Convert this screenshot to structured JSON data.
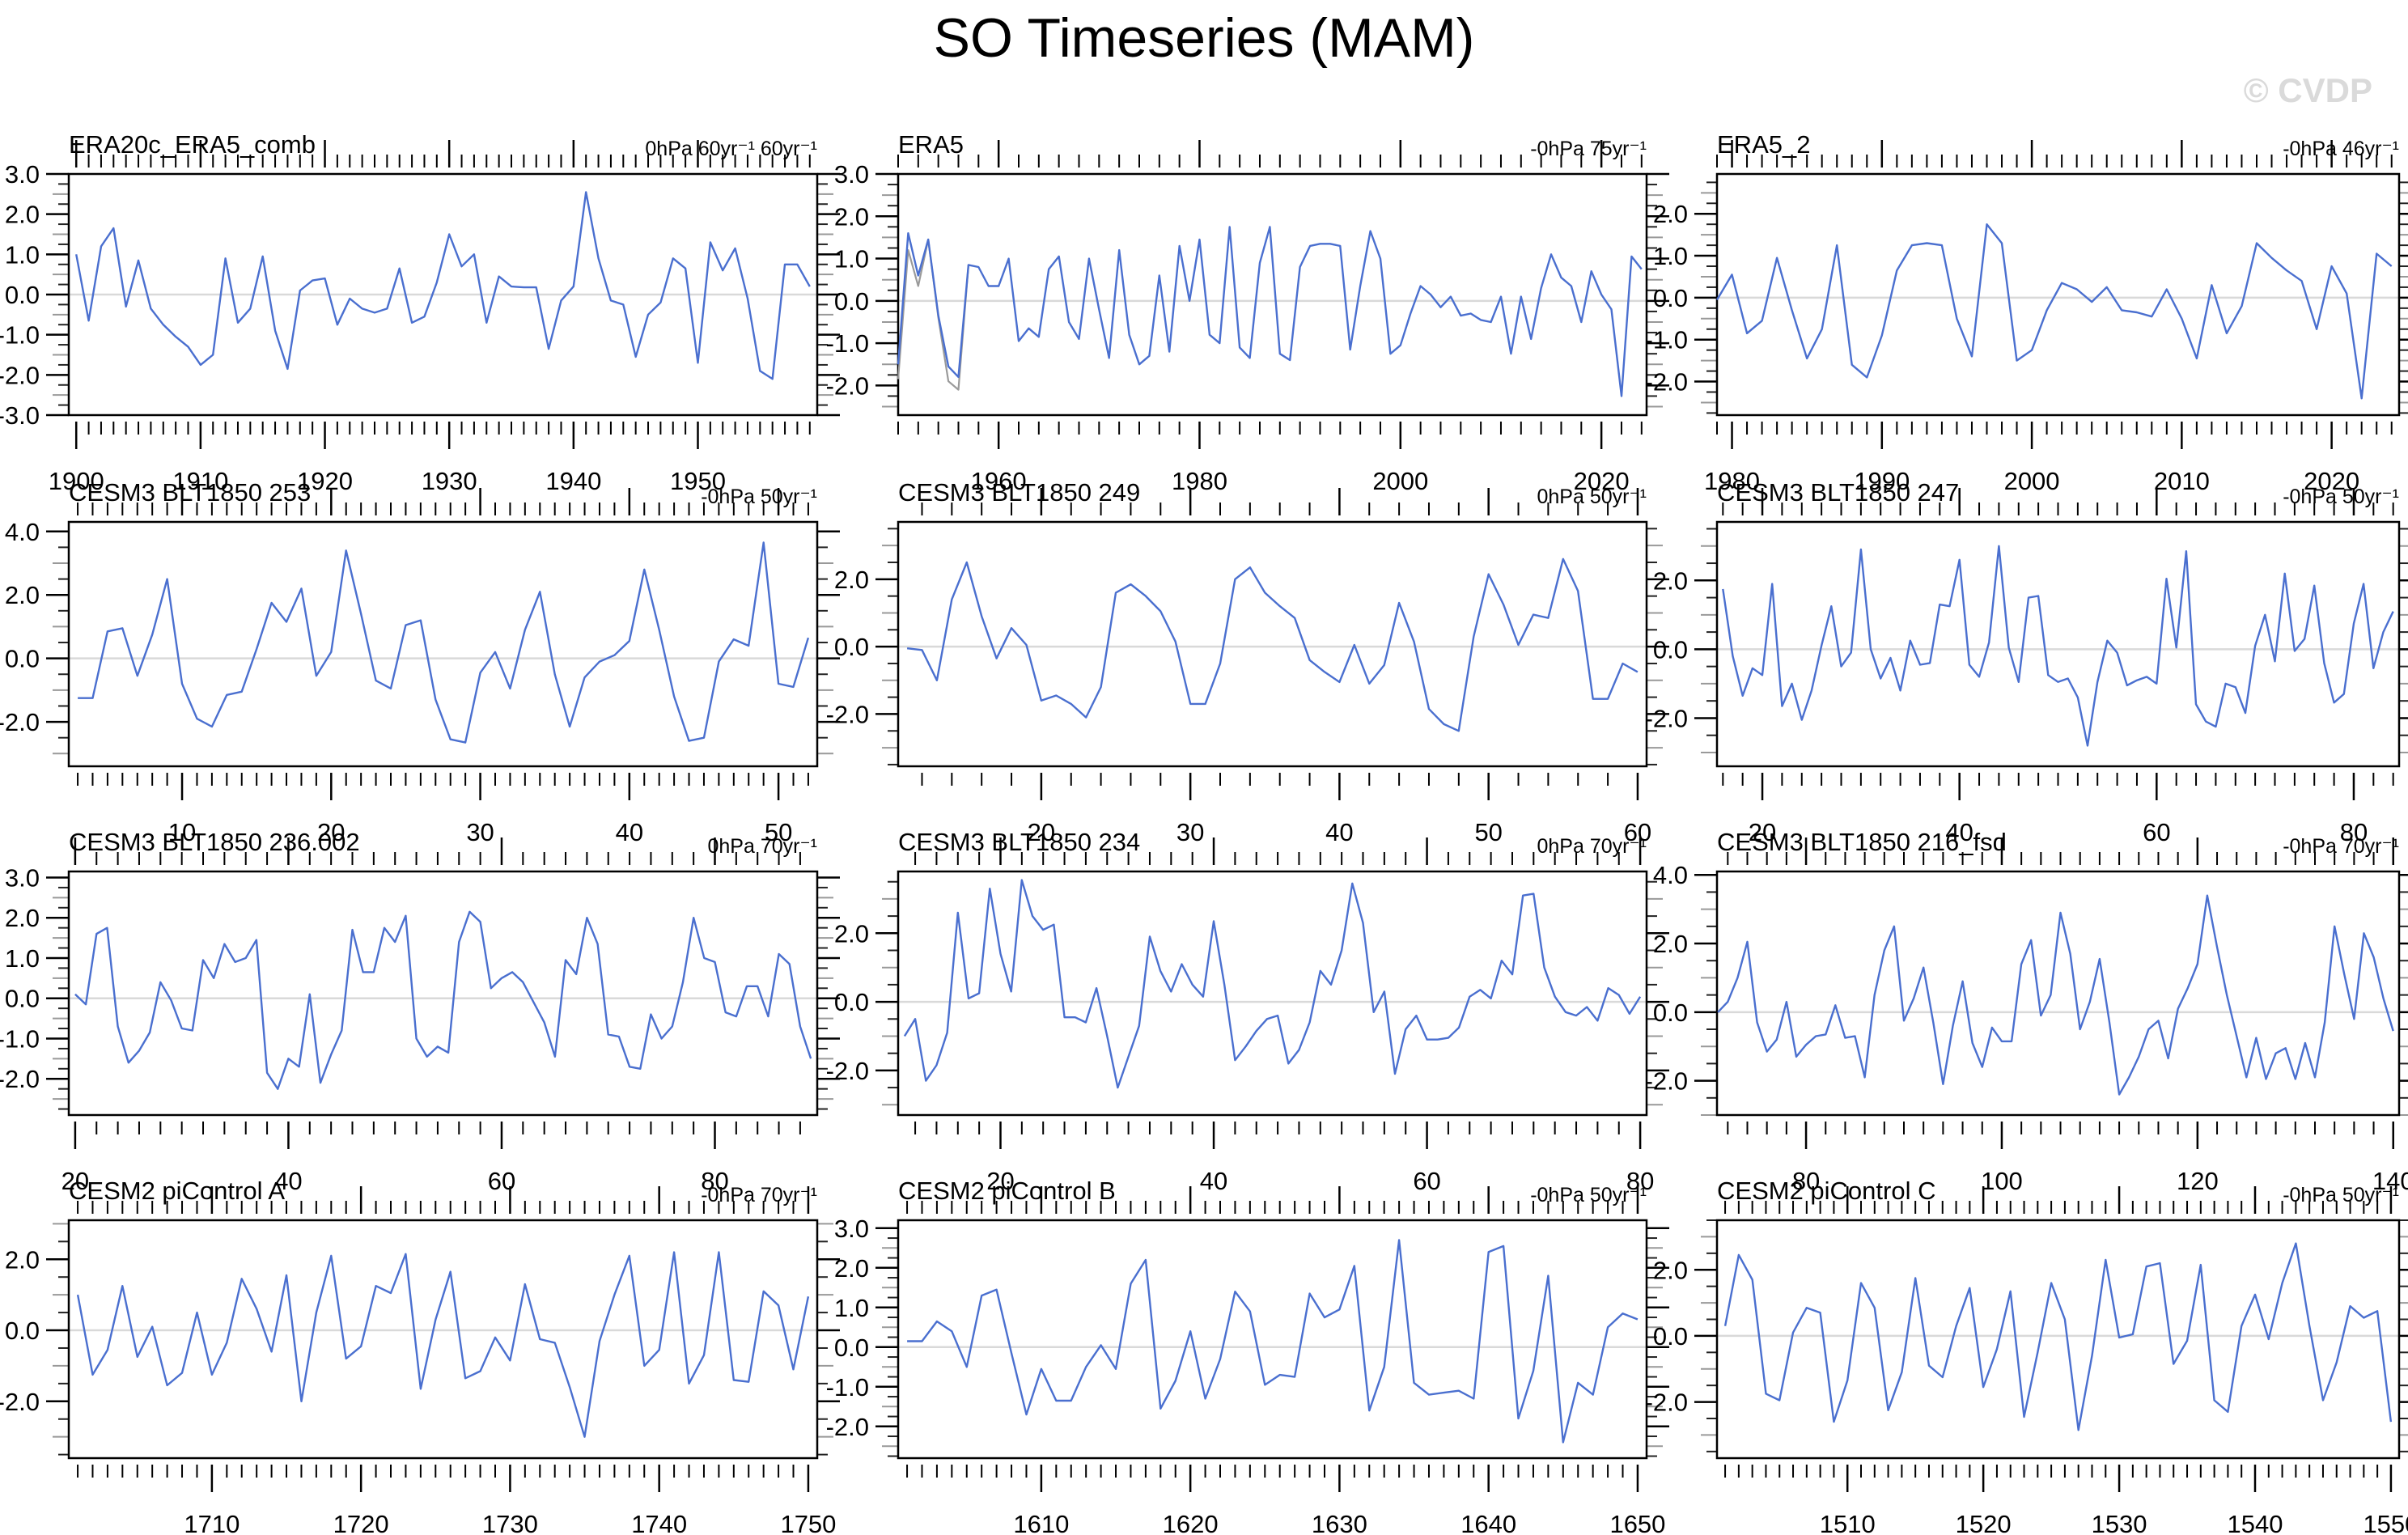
{
  "page": {
    "title": "SO Timeseries (MAM)",
    "watermark": "© CVDP"
  },
  "colors": {
    "line": "#4a6fcf",
    "gray_line": "#9a9a9a",
    "zero_line": "#d9d9d9",
    "frame": "#000000",
    "watermark": "#dadada"
  },
  "chart_data": [
    {
      "type": "line",
      "title": "ERA20c_ERA5_comb",
      "units_label": "0hPa 60yr⁻¹ 60yr⁻¹",
      "x_start": 1900,
      "x_step": 1,
      "xlim": [
        1899.4,
        1959.6
      ],
      "ylim": [
        -3.0,
        3.0
      ],
      "x_major_start": 1900,
      "x_major_step": 10,
      "x_minor_step": 1,
      "y_major_step": 1.0,
      "values": [
        1.0,
        -0.65,
        1.2,
        1.65,
        -0.3,
        0.85,
        -0.35,
        -0.75,
        -1.05,
        -1.3,
        -1.75,
        -1.5,
        0.9,
        -0.7,
        -0.35,
        0.95,
        -0.9,
        -1.85,
        0.1,
        0.35,
        0.4,
        -0.75,
        -0.1,
        -0.35,
        -0.45,
        -0.35,
        0.65,
        -0.7,
        -0.55,
        0.3,
        1.5,
        0.7,
        1.0,
        -0.7,
        0.45,
        0.2,
        0.18,
        0.18,
        -1.35,
        -0.15,
        0.2,
        2.55,
        0.9,
        -0.15,
        -0.25,
        -1.55,
        -0.5,
        -0.2,
        0.9,
        0.65,
        -1.7,
        1.3,
        0.6,
        1.15,
        -0.1,
        -1.9,
        -2.1,
        0.75,
        0.75,
        0.2
      ]
    },
    {
      "type": "line",
      "title": "ERA5",
      "units_label": "-0hPa 75yr⁻¹",
      "x_start": 1950,
      "x_step": 1,
      "xlim": [
        1950,
        2024.5
      ],
      "ylim": [
        -2.7,
        3.0
      ],
      "x_major_start": 1960,
      "x_major_step": 20,
      "x_minor_step": 2,
      "y_major_step": 1.0,
      "values": [
        -1.5,
        1.6,
        0.6,
        1.45,
        -0.35,
        -1.55,
        -1.8,
        0.85,
        0.8,
        0.35,
        0.35,
        1.0,
        -0.95,
        -0.65,
        -0.85,
        0.75,
        1.05,
        -0.5,
        -0.9,
        1.0,
        -0.2,
        -1.35,
        1.2,
        -0.8,
        -1.5,
        -1.3,
        0.6,
        -1.2,
        1.3,
        0.0,
        1.45,
        -0.8,
        -1.0,
        1.75,
        -1.1,
        -1.35,
        0.9,
        1.75,
        -1.25,
        -1.4,
        0.8,
        1.3,
        1.35,
        1.35,
        1.3,
        -1.15,
        0.35,
        1.65,
        1.0,
        -1.25,
        -1.05,
        -0.3,
        0.35,
        0.15,
        -0.15,
        0.1,
        -0.35,
        -0.3,
        -0.45,
        -0.5,
        0.1,
        -1.25,
        0.1,
        -0.9,
        0.3,
        1.1,
        0.55,
        0.35,
        -0.5,
        0.7,
        0.15,
        -0.2,
        -2.25,
        1.05,
        0.75
      ],
      "secondary_gray": {
        "x_start": 1950,
        "values": [
          -1.85,
          1.2,
          0.35,
          1.45,
          -0.4,
          -1.9,
          -2.1,
          0.85
        ]
      }
    },
    {
      "type": "line",
      "title": "ERA5_2",
      "units_label": "-0hPa 46yr⁻¹",
      "x_start": 1979,
      "x_step": 1,
      "xlim": [
        1979,
        2024.5
      ],
      "ylim": [
        -2.8,
        2.95
      ],
      "x_major_start": 1980,
      "x_major_step": 10,
      "x_minor_step": 1,
      "y_major_step": 1.0,
      "values": [
        -0.05,
        0.55,
        -0.85,
        -0.55,
        0.95,
        -0.3,
        -1.45,
        -0.75,
        1.25,
        -1.6,
        -1.9,
        -0.9,
        0.65,
        1.25,
        1.3,
        1.25,
        -0.5,
        -1.4,
        1.75,
        1.3,
        -1.5,
        -1.25,
        -0.3,
        0.35,
        0.2,
        -0.1,
        0.25,
        -0.3,
        -0.35,
        -0.45,
        0.2,
        -0.5,
        -1.45,
        0.3,
        -0.85,
        -0.2,
        1.3,
        0.95,
        0.65,
        0.4,
        -0.75,
        0.75,
        0.1,
        -2.4,
        1.05,
        0.75
      ]
    },
    {
      "type": "line",
      "title": "CESM3 BLT1850 253",
      "units_label": "-0hPa 50yr⁻¹",
      "x_start": 3,
      "x_step": 1,
      "xlim": [
        2.4,
        52.6
      ],
      "ylim": [
        -3.4,
        4.3
      ],
      "x_major_start": 10,
      "x_major_step": 10,
      "x_minor_step": 1,
      "y_major_step": 2.0,
      "values": [
        -1.25,
        -1.25,
        0.85,
        0.95,
        -0.55,
        0.75,
        2.5,
        -0.8,
        -1.9,
        -2.15,
        -1.15,
        -1.05,
        0.3,
        1.75,
        1.15,
        2.2,
        -0.55,
        0.2,
        3.4,
        1.4,
        -0.7,
        -0.95,
        1.05,
        1.2,
        -1.3,
        -2.55,
        -2.65,
        -0.45,
        0.2,
        -0.95,
        0.9,
        2.1,
        -0.5,
        -2.15,
        -0.6,
        -0.1,
        0.1,
        0.55,
        2.8,
        0.9,
        -1.2,
        -2.6,
        -2.5,
        -0.1,
        0.6,
        0.4,
        3.65,
        -0.8,
        -0.9,
        0.65
      ]
    },
    {
      "type": "line",
      "title": "CESM3 BLT1850 249",
      "units_label": "0hPa 50yr⁻¹",
      "x_start": 11,
      "x_step": 1,
      "xlim": [
        10.4,
        60.6
      ],
      "ylim": [
        -3.55,
        3.7
      ],
      "x_major_start": 20,
      "x_major_step": 10,
      "x_minor_step": 2,
      "y_major_step": 2.0,
      "values": [
        -0.05,
        -0.1,
        -1.0,
        1.4,
        2.5,
        0.9,
        -0.35,
        0.55,
        0.05,
        -1.6,
        -1.45,
        -1.7,
        -2.1,
        -1.2,
        1.6,
        1.85,
        1.5,
        1.05,
        0.15,
        -1.7,
        -1.7,
        -0.5,
        2.0,
        2.35,
        1.6,
        1.2,
        0.85,
        -0.4,
        -0.75,
        -1.05,
        0.05,
        -1.1,
        -0.55,
        1.3,
        0.15,
        -1.85,
        -2.3,
        -2.5,
        0.3,
        2.15,
        1.25,
        0.05,
        0.95,
        0.85,
        2.6,
        1.65,
        -1.55,
        -1.55,
        -0.5,
        -0.75
      ]
    },
    {
      "type": "line",
      "title": "CESM3 BLT1850 247",
      "units_label": "-0hPa 50yr⁻¹",
      "x_start": 16,
      "x_step": 1,
      "xlim": [
        15.4,
        84.6
      ],
      "ylim": [
        -3.4,
        3.7
      ],
      "x_major_start": 20,
      "x_major_step": 20,
      "x_minor_step": 2,
      "y_major_step": 2.0,
      "values": [
        1.75,
        -0.2,
        -1.35,
        -0.55,
        -0.75,
        1.9,
        -1.65,
        -1.0,
        -2.05,
        -1.2,
        0.1,
        1.25,
        -0.5,
        -0.1,
        2.9,
        0.0,
        -0.85,
        -0.25,
        -1.2,
        0.25,
        -0.45,
        -0.4,
        1.3,
        1.25,
        2.6,
        -0.45,
        -0.8,
        0.2,
        3.0,
        0.05,
        -0.95,
        1.5,
        1.55,
        -0.75,
        -0.95,
        -0.85,
        -1.4,
        -2.8,
        -0.95,
        0.25,
        -0.1,
        -1.05,
        -0.9,
        -0.8,
        -1.0,
        2.05,
        0.05,
        2.85,
        -1.6,
        -2.1,
        -2.25,
        -1.0,
        -1.1,
        -1.85,
        0.1,
        1.0,
        -0.35,
        2.2,
        -0.05,
        0.3,
        1.85,
        -0.4,
        -1.55,
        -1.3,
        0.75,
        1.9,
        -0.55,
        0.5,
        1.1
      ]
    },
    {
      "type": "line",
      "title": "CESM3 BLT1850 236.002",
      "units_label": "0hPa 70yr⁻¹",
      "x_start": 20,
      "x_step": 1,
      "xlim": [
        19.4,
        89.6
      ],
      "ylim": [
        -2.9,
        3.15
      ],
      "x_major_start": 20,
      "x_major_step": 20,
      "x_minor_step": 2,
      "y_major_step": 1.0,
      "values": [
        0.1,
        -0.15,
        1.6,
        1.75,
        -0.7,
        -1.6,
        -1.3,
        -0.85,
        0.4,
        -0.05,
        -0.75,
        -0.8,
        0.95,
        0.5,
        1.35,
        0.9,
        1.0,
        1.45,
        -1.85,
        -2.25,
        -1.5,
        -1.7,
        0.1,
        -2.1,
        -1.4,
        -0.8,
        1.7,
        0.65,
        0.65,
        1.75,
        1.4,
        2.05,
        -1.0,
        -1.45,
        -1.2,
        -1.35,
        1.4,
        2.15,
        1.9,
        0.25,
        0.5,
        0.65,
        0.4,
        -0.1,
        -0.6,
        -1.45,
        0.95,
        0.6,
        2.0,
        1.35,
        -0.9,
        -0.95,
        -1.7,
        -1.75,
        -0.4,
        -1.0,
        -0.7,
        0.4,
        2.0,
        1.0,
        0.9,
        -0.35,
        -0.45,
        0.3,
        0.3,
        -0.45,
        1.1,
        0.85,
        -0.7,
        -1.5
      ]
    },
    {
      "type": "line",
      "title": "CESM3 BLT1850 234",
      "units_label": "0hPa 70yr⁻¹",
      "x_start": 11,
      "x_step": 1,
      "xlim": [
        10.4,
        80.6
      ],
      "ylim": [
        -3.3,
        3.8
      ],
      "x_major_start": 20,
      "x_major_step": 20,
      "x_minor_step": 2,
      "y_major_step": 2.0,
      "values": [
        -1.0,
        -0.5,
        -2.3,
        -1.85,
        -0.9,
        2.6,
        0.1,
        0.25,
        3.3,
        1.4,
        0.3,
        3.55,
        2.5,
        2.1,
        2.25,
        -0.45,
        -0.45,
        -0.6,
        0.4,
        -1.0,
        -2.5,
        -1.6,
        -0.7,
        1.9,
        0.9,
        0.3,
        1.1,
        0.5,
        0.15,
        2.35,
        0.5,
        -1.7,
        -1.3,
        -0.85,
        -0.5,
        -0.4,
        -1.8,
        -1.4,
        -0.6,
        0.9,
        0.5,
        1.5,
        3.45,
        2.3,
        -0.3,
        0.3,
        -2.1,
        -0.8,
        -0.4,
        -1.1,
        -1.1,
        -1.05,
        -0.75,
        0.15,
        0.35,
        0.1,
        1.2,
        0.8,
        3.1,
        3.15,
        1.0,
        0.15,
        -0.3,
        -0.4,
        -0.15,
        -0.55,
        0.4,
        0.2,
        -0.35,
        0.15
      ]
    },
    {
      "type": "line",
      "title": "CESM3 BLT1850 216_fsd",
      "units_label": "-0hPa 70yr⁻¹",
      "x_start": 71,
      "x_step": 1,
      "xlim": [
        70.9,
        140.6
      ],
      "ylim": [
        -3.0,
        4.1
      ],
      "x_major_start": 80,
      "x_major_step": 20,
      "x_minor_step": 2,
      "y_major_step": 2.0,
      "values": [
        0.0,
        0.3,
        1.0,
        2.05,
        -0.3,
        -1.15,
        -0.8,
        0.3,
        -1.3,
        -0.95,
        -0.7,
        -0.65,
        0.2,
        -0.75,
        -0.7,
        -1.9,
        0.5,
        1.8,
        2.5,
        -0.25,
        0.4,
        1.3,
        -0.3,
        -2.1,
        -0.4,
        0.9,
        -0.9,
        -1.6,
        -0.45,
        -0.85,
        -0.85,
        1.4,
        2.1,
        -0.1,
        0.5,
        2.9,
        1.7,
        -0.5,
        0.3,
        1.55,
        -0.3,
        -2.4,
        -1.9,
        -1.3,
        -0.5,
        -0.25,
        -1.35,
        0.1,
        0.7,
        1.4,
        3.4,
        1.9,
        0.5,
        -0.7,
        -1.9,
        -0.75,
        -1.95,
        -1.2,
        -1.05,
        -1.95,
        -0.9,
        -1.9,
        -0.3,
        2.5,
        1.1,
        -0.2,
        2.3,
        1.6,
        0.4,
        -0.55
      ]
    },
    {
      "type": "line",
      "title": "CESM2 piControl A",
      "units_label": "-0hPa 70yr⁻¹",
      "x_start": 1701,
      "x_step": 1,
      "xlim": [
        1700.4,
        1750.6
      ],
      "ylim": [
        -3.6,
        3.1
      ],
      "x_major_start": 1710,
      "x_major_step": 10,
      "x_minor_step": 1,
      "y_major_step": 2.0,
      "values": [
        1.0,
        -1.25,
        -0.55,
        1.25,
        -0.75,
        0.1,
        -1.55,
        -1.2,
        0.5,
        -1.25,
        -0.35,
        1.45,
        0.6,
        -0.6,
        1.55,
        -2.0,
        0.5,
        2.1,
        -0.8,
        -0.45,
        1.25,
        1.05,
        2.15,
        -1.65,
        0.3,
        1.65,
        -1.35,
        -1.15,
        -0.2,
        -0.85,
        1.3,
        -0.25,
        -0.35,
        -1.6,
        -3.0,
        -0.3,
        1.0,
        2.1,
        -1.0,
        -0.55,
        2.2,
        -1.5,
        -0.7,
        2.2,
        -1.4,
        -1.45,
        1.1,
        0.7,
        -1.1,
        0.95
      ]
    },
    {
      "type": "line",
      "title": "CESM2 piControl B",
      "units_label": "-0hPa 50yr⁻¹",
      "x_start": 1601,
      "x_step": 1,
      "xlim": [
        1600.4,
        1650.6
      ],
      "ylim": [
        -2.8,
        3.2
      ],
      "x_major_start": 1610,
      "x_major_step": 10,
      "x_minor_step": 1,
      "y_major_step": 1.0,
      "values": [
        0.15,
        0.15,
        0.65,
        0.4,
        -0.5,
        1.3,
        1.45,
        -0.15,
        -1.7,
        -0.55,
        -1.35,
        -1.35,
        -0.5,
        0.05,
        -0.55,
        1.6,
        2.2,
        -1.55,
        -0.85,
        0.4,
        -1.3,
        -0.3,
        1.4,
        0.9,
        -0.95,
        -0.7,
        -0.75,
        1.35,
        0.75,
        0.95,
        2.05,
        -1.6,
        -0.5,
        2.7,
        -0.9,
        -1.2,
        -1.15,
        -1.1,
        -1.3,
        2.4,
        2.55,
        -1.8,
        -0.6,
        1.8,
        -2.4,
        -0.9,
        -1.2,
        0.5,
        0.85,
        0.7
      ]
    },
    {
      "type": "line",
      "title": "CESM2 piControl C",
      "units_label": "-0hPa 50yr⁻¹",
      "x_start": 1501,
      "x_step": 1,
      "xlim": [
        1500.4,
        1550.6
      ],
      "ylim": [
        -3.7,
        3.5
      ],
      "x_major_start": 1510,
      "x_major_step": 10,
      "x_minor_step": 1,
      "y_major_step": 2.0,
      "values": [
        0.3,
        2.45,
        1.7,
        -1.75,
        -1.95,
        0.1,
        0.85,
        0.7,
        -2.6,
        -1.35,
        1.6,
        0.85,
        -2.25,
        -1.1,
        1.75,
        -0.9,
        -1.25,
        0.3,
        1.45,
        -1.55,
        -0.4,
        1.35,
        -2.45,
        -0.5,
        1.6,
        0.5,
        -2.85,
        -0.6,
        2.3,
        -0.05,
        0.05,
        2.1,
        2.2,
        -0.85,
        -0.15,
        2.15,
        -1.95,
        -2.3,
        0.3,
        1.25,
        -0.1,
        1.6,
        2.8,
        0.3,
        -1.95,
        -0.8,
        0.9,
        0.55,
        0.75,
        -2.6
      ]
    }
  ]
}
